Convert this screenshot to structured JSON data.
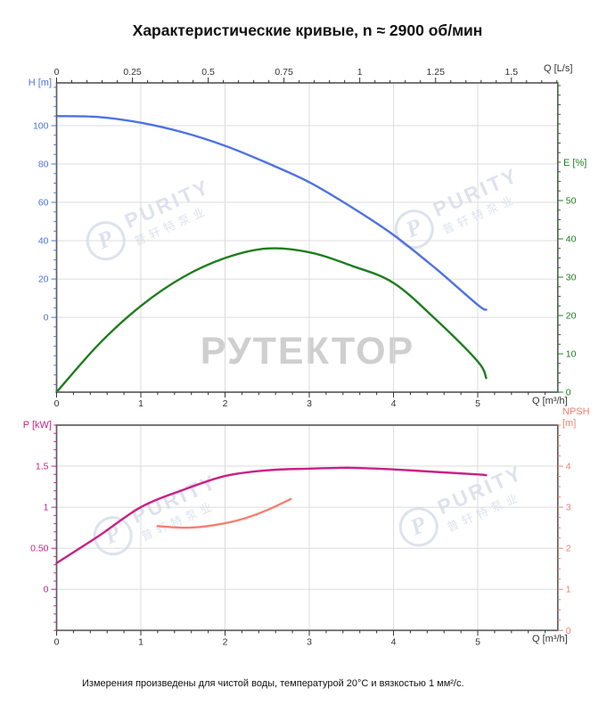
{
  "title": "Характеристические кривые, n ≈ 2900 об/мин",
  "footer": "Измерения произведены для чистой воды, температурой 20°C и вязкостью 1 мм²/с.",
  "watermarks": {
    "purity_brand": "PURITY",
    "purity_cn": "普轩特泵业",
    "purity_logo_letter": "P",
    "rutektor": "РУТЕКТОР"
  },
  "colors": {
    "head_curve": "#4e72e2",
    "efficiency_curve": "#1e7d1e",
    "power_curve": "#c92185",
    "npsh_curve": "#f4806d",
    "axis": "#5f5f5f",
    "grid": "#dcdcdc",
    "x_tick_text": "#333333",
    "watermark_gray": "#c7c7c7",
    "watermark_blue": "#c9d0e3"
  },
  "chart_data": [
    {
      "type": "line",
      "name": "Q-H and Q-E pump performance curves",
      "grid": true,
      "legend": "none",
      "axes": {
        "bottom": {
          "label": "Q [m³/h]",
          "min": 0,
          "max": 5.95,
          "tick_values": [
            0,
            1,
            2,
            3,
            4,
            5
          ],
          "tick_labels": [
            "0",
            "1",
            "2",
            "3",
            "4",
            "5"
          ],
          "minor_step": 0.2,
          "color": "#333333"
        },
        "top": {
          "label": "Q [L/s]",
          "min": 0,
          "max": 1.653,
          "tick_values": [
            0,
            0.25,
            0.5,
            0.75,
            1,
            1.25,
            1.5
          ],
          "tick_labels": [
            "0",
            "0.25",
            "0.5",
            "0.75",
            "1",
            "1.25",
            "1.5"
          ],
          "minor_step": 0.05,
          "color": "#333333"
        },
        "left": {
          "label": "H [m]",
          "min": -39,
          "max": 122.3,
          "tick_values": [
            0,
            20,
            40,
            60,
            80,
            100
          ],
          "tick_labels": [
            "0",
            "20",
            "40",
            "60",
            "80",
            "100"
          ],
          "minor_step": 5,
          "color": "#4e72e2"
        },
        "right": {
          "label": "E [%]",
          "min": 0,
          "max": 80.7,
          "tick_values": [
            0,
            10,
            20,
            30,
            40,
            50
          ],
          "tick_labels": [
            "0",
            "10",
            "20",
            "30",
            "40",
            "50"
          ],
          "minor_step": 2.5,
          "color": "#1e7d1e"
        }
      },
      "series": [
        {
          "name": "H(Q) head curve",
          "axis": "left",
          "color": "#4e72e2",
          "points": [
            [
              0,
              105
            ],
            [
              0.5,
              104.5
            ],
            [
              1,
              101.5
            ],
            [
              1.5,
              96.5
            ],
            [
              2,
              89.5
            ],
            [
              2.5,
              80.5
            ],
            [
              3,
              70.5
            ],
            [
              3.5,
              57.5
            ],
            [
              4,
              43
            ],
            [
              4.5,
              25.5
            ],
            [
              5,
              6.5
            ],
            [
              5.1,
              4
            ]
          ]
        },
        {
          "name": "E(Q) efficiency curve",
          "axis": "right",
          "color": "#1e7d1e",
          "points": [
            [
              0,
              0
            ],
            [
              0.5,
              12.5
            ],
            [
              1,
              22.5
            ],
            [
              1.5,
              30
            ],
            [
              2,
              35
            ],
            [
              2.5,
              37.5
            ],
            [
              3,
              36.5
            ],
            [
              3.5,
              33
            ],
            [
              4,
              28.5
            ],
            [
              4.5,
              19
            ],
            [
              5,
              8
            ],
            [
              5.1,
              3.7
            ]
          ]
        }
      ]
    },
    {
      "type": "line",
      "name": "Q-P and Q-NPSH pump performance curves",
      "grid": true,
      "legend": "none",
      "axes": {
        "bottom": {
          "label": "Q [m³/h]",
          "min": 0,
          "max": 5.95,
          "tick_values": [
            0,
            1,
            2,
            3,
            4,
            5
          ],
          "tick_labels": [
            "0",
            "1",
            "2",
            "3",
            "4",
            "5"
          ],
          "minor_step": 0.2,
          "color": "#333333"
        },
        "left": {
          "label": "P [kW]",
          "min": -0.5,
          "max": 2.0,
          "tick_values": [
            0,
            0.5,
            1,
            1.5
          ],
          "tick_labels": [
            "0",
            "0.50",
            "1",
            "1.5"
          ],
          "minor_step": 0.1,
          "color": "#c92185"
        },
        "right": {
          "label": "NPSH [m]",
          "label_line1": "NPSH",
          "label_line2": "[m]",
          "min": 0,
          "max": 5,
          "tick_values": [
            0,
            1,
            2,
            3,
            4
          ],
          "tick_labels": [
            "0",
            "1",
            "2",
            "3",
            "4"
          ],
          "minor_step": 0.25,
          "color": "#f4806d"
        }
      },
      "series": [
        {
          "name": "P(Q) power curve",
          "axis": "left",
          "color": "#c92185",
          "points": [
            [
              0,
              0.32
            ],
            [
              0.5,
              0.65
            ],
            [
              1,
              1.0
            ],
            [
              1.5,
              1.21
            ],
            [
              2,
              1.38
            ],
            [
              2.5,
              1.45
            ],
            [
              3,
              1.47
            ],
            [
              3.5,
              1.48
            ],
            [
              4,
              1.46
            ],
            [
              4.5,
              1.43
            ],
            [
              5,
              1.4
            ],
            [
              5.1,
              1.39
            ]
          ]
        },
        {
          "name": "NPSH(Q) curve",
          "axis": "right",
          "color": "#f4806d",
          "points": [
            [
              1.2,
              2.54
            ],
            [
              1.5,
              2.5
            ],
            [
              1.75,
              2.53
            ],
            [
              2,
              2.61
            ],
            [
              2.25,
              2.74
            ],
            [
              2.5,
              2.93
            ],
            [
              2.78,
              3.2
            ]
          ]
        }
      ]
    }
  ]
}
